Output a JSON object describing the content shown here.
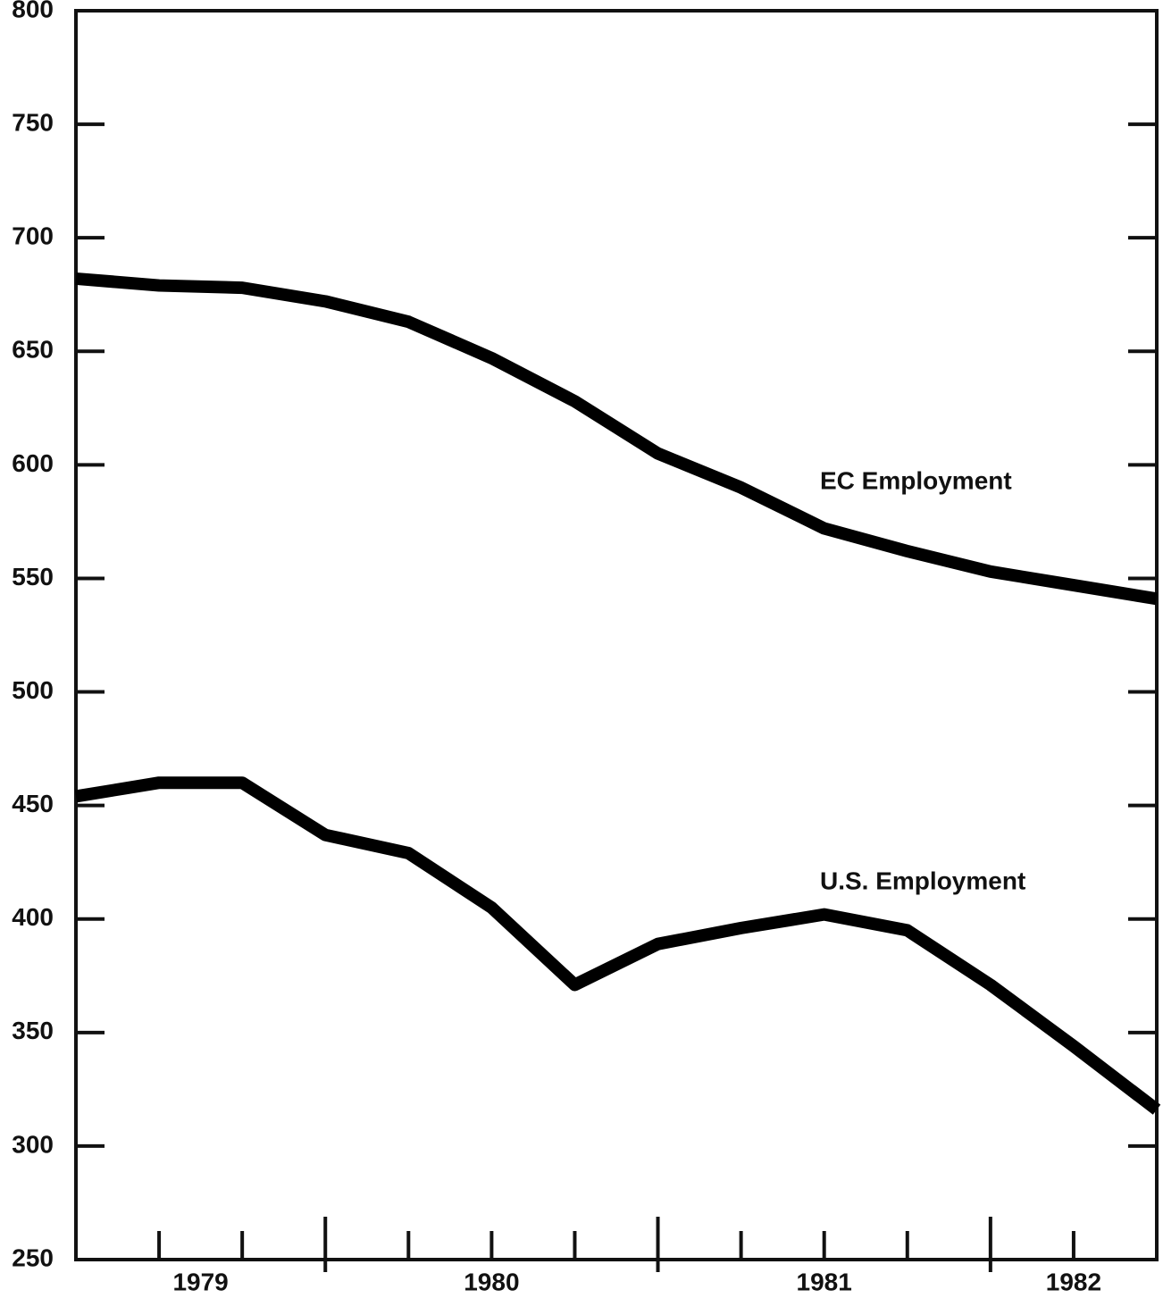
{
  "chart_data": {
    "type": "line",
    "x": [
      1979.25,
      1979.5,
      1979.75,
      1980.0,
      1980.25,
      1980.5,
      1980.75,
      1981.0,
      1981.25,
      1981.5,
      1981.75,
      1982.0,
      1982.25,
      1982.5
    ],
    "series": [
      {
        "name": "EC Employment",
        "color": "#000000",
        "values": [
          682,
          679,
          678,
          672,
          663,
          647,
          628,
          605,
          590,
          572,
          562,
          553,
          547,
          541
        ]
      },
      {
        "name": "U.S. Employment",
        "color": "#000000",
        "values": [
          454,
          460,
          460,
          437,
          429,
          405,
          371,
          389,
          396,
          402,
          395,
          371,
          344,
          316
        ]
      }
    ],
    "xlim": [
      1979.25,
      1982.5
    ],
    "xticks": [
      {
        "value": 1979.625,
        "label": "1979"
      },
      {
        "value": 1980.5,
        "label": "1980"
      },
      {
        "value": 1981.5,
        "label": "1981"
      },
      {
        "value": 1982.25,
        "label": "1982"
      }
    ],
    "xticks_minor": [
      1979.5,
      1979.75,
      1980.25,
      1980.5,
      1980.75,
      1981.25,
      1981.5,
      1981.75,
      1982.25
    ],
    "xticks_major": [
      1980.0,
      1981.0,
      1982.0
    ],
    "ylim": [
      250,
      800
    ],
    "yticks": [
      250,
      300,
      350,
      400,
      450,
      500,
      550,
      600,
      650,
      700,
      750,
      800
    ]
  }
}
